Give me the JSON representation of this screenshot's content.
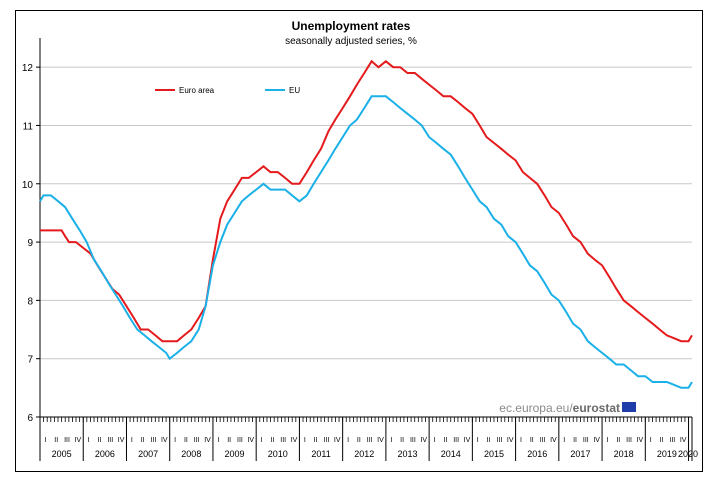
{
  "chart_data": {
    "type": "line",
    "title": "Unemployment rates",
    "subtitle": "seasonally adjusted series, %",
    "xlabel": "",
    "ylabel": "",
    "ylim": [
      6,
      12.5
    ],
    "yticks": [
      6,
      7,
      8,
      9,
      10,
      11,
      12
    ],
    "grid": true,
    "legend_position": "top-left",
    "years": [
      "2005",
      "2006",
      "2007",
      "2008",
      "2009",
      "2010",
      "2011",
      "2012",
      "2013",
      "2014",
      "2015",
      "2016",
      "2017",
      "2018",
      "2019",
      "2020"
    ],
    "quarter_labels": [
      "I",
      "II",
      "III",
      "IV"
    ],
    "x_start": 2005.0,
    "x_end": 2020.08,
    "series": [
      {
        "name": "Euro area",
        "color": "#e41a1c",
        "points": [
          [
            2005.0,
            9.2
          ],
          [
            2005.25,
            9.2
          ],
          [
            2005.5,
            9.2
          ],
          [
            2005.58,
            9.1
          ],
          [
            2005.67,
            9.0
          ],
          [
            2005.83,
            9.0
          ],
          [
            2006.0,
            8.9
          ],
          [
            2006.17,
            8.8
          ],
          [
            2006.33,
            8.6
          ],
          [
            2006.5,
            8.4
          ],
          [
            2006.67,
            8.2
          ],
          [
            2006.83,
            8.1
          ],
          [
            2007.0,
            7.9
          ],
          [
            2007.17,
            7.7
          ],
          [
            2007.33,
            7.5
          ],
          [
            2007.5,
            7.5
          ],
          [
            2007.67,
            7.4
          ],
          [
            2007.83,
            7.3
          ],
          [
            2008.0,
            7.3
          ],
          [
            2008.17,
            7.3
          ],
          [
            2008.33,
            7.4
          ],
          [
            2008.5,
            7.5
          ],
          [
            2008.67,
            7.7
          ],
          [
            2008.83,
            7.9
          ],
          [
            2009.0,
            8.7
          ],
          [
            2009.17,
            9.4
          ],
          [
            2009.33,
            9.7
          ],
          [
            2009.5,
            9.9
          ],
          [
            2009.67,
            10.1
          ],
          [
            2009.83,
            10.1
          ],
          [
            2010.0,
            10.2
          ],
          [
            2010.17,
            10.3
          ],
          [
            2010.33,
            10.2
          ],
          [
            2010.5,
            10.2
          ],
          [
            2010.67,
            10.1
          ],
          [
            2010.83,
            10.0
          ],
          [
            2011.0,
            10.0
          ],
          [
            2011.17,
            10.2
          ],
          [
            2011.33,
            10.4
          ],
          [
            2011.5,
            10.6
          ],
          [
            2011.67,
            10.9
          ],
          [
            2011.83,
            11.1
          ],
          [
            2012.0,
            11.3
          ],
          [
            2012.17,
            11.5
          ],
          [
            2012.33,
            11.7
          ],
          [
            2012.5,
            11.9
          ],
          [
            2012.67,
            12.1
          ],
          [
            2012.83,
            12.0
          ],
          [
            2013.0,
            12.1
          ],
          [
            2013.17,
            12.0
          ],
          [
            2013.33,
            12.0
          ],
          [
            2013.5,
            11.9
          ],
          [
            2013.67,
            11.9
          ],
          [
            2013.83,
            11.8
          ],
          [
            2014.0,
            11.7
          ],
          [
            2014.17,
            11.6
          ],
          [
            2014.33,
            11.5
          ],
          [
            2014.5,
            11.5
          ],
          [
            2014.67,
            11.4
          ],
          [
            2014.83,
            11.3
          ],
          [
            2015.0,
            11.2
          ],
          [
            2015.17,
            11.0
          ],
          [
            2015.33,
            10.8
          ],
          [
            2015.5,
            10.7
          ],
          [
            2015.67,
            10.6
          ],
          [
            2015.83,
            10.5
          ],
          [
            2016.0,
            10.4
          ],
          [
            2016.17,
            10.2
          ],
          [
            2016.33,
            10.1
          ],
          [
            2016.5,
            10.0
          ],
          [
            2016.67,
            9.8
          ],
          [
            2016.83,
            9.6
          ],
          [
            2017.0,
            9.5
          ],
          [
            2017.17,
            9.3
          ],
          [
            2017.33,
            9.1
          ],
          [
            2017.5,
            9.0
          ],
          [
            2017.67,
            8.8
          ],
          [
            2017.83,
            8.7
          ],
          [
            2018.0,
            8.6
          ],
          [
            2018.17,
            8.4
          ],
          [
            2018.33,
            8.2
          ],
          [
            2018.5,
            8.0
          ],
          [
            2018.67,
            7.9
          ],
          [
            2018.83,
            7.8
          ],
          [
            2019.0,
            7.7
          ],
          [
            2019.17,
            7.6
          ],
          [
            2019.33,
            7.5
          ],
          [
            2019.5,
            7.4
          ],
          [
            2019.67,
            7.35
          ],
          [
            2019.83,
            7.3
          ],
          [
            2020.0,
            7.3
          ],
          [
            2020.08,
            7.4
          ]
        ]
      },
      {
        "name": "EU",
        "color": "#1ab0e8",
        "points": [
          [
            2005.0,
            9.7
          ],
          [
            2005.08,
            9.8
          ],
          [
            2005.25,
            9.8
          ],
          [
            2005.42,
            9.7
          ],
          [
            2005.58,
            9.6
          ],
          [
            2005.75,
            9.4
          ],
          [
            2005.92,
            9.2
          ],
          [
            2006.08,
            9.0
          ],
          [
            2006.25,
            8.7
          ],
          [
            2006.42,
            8.5
          ],
          [
            2006.58,
            8.3
          ],
          [
            2006.75,
            8.1
          ],
          [
            2006.92,
            7.9
          ],
          [
            2007.08,
            7.7
          ],
          [
            2007.25,
            7.5
          ],
          [
            2007.42,
            7.4
          ],
          [
            2007.58,
            7.3
          ],
          [
            2007.75,
            7.2
          ],
          [
            2007.92,
            7.1
          ],
          [
            2008.0,
            7.0
          ],
          [
            2008.17,
            7.1
          ],
          [
            2008.33,
            7.2
          ],
          [
            2008.5,
            7.3
          ],
          [
            2008.67,
            7.5
          ],
          [
            2008.83,
            7.9
          ],
          [
            2009.0,
            8.6
          ],
          [
            2009.17,
            9.0
          ],
          [
            2009.33,
            9.3
          ],
          [
            2009.5,
            9.5
          ],
          [
            2009.67,
            9.7
          ],
          [
            2009.83,
            9.8
          ],
          [
            2010.0,
            9.9
          ],
          [
            2010.17,
            10.0
          ],
          [
            2010.33,
            9.9
          ],
          [
            2010.5,
            9.9
          ],
          [
            2010.67,
            9.9
          ],
          [
            2010.83,
            9.8
          ],
          [
            2011.0,
            9.7
          ],
          [
            2011.17,
            9.8
          ],
          [
            2011.33,
            10.0
          ],
          [
            2011.5,
            10.2
          ],
          [
            2011.67,
            10.4
          ],
          [
            2011.83,
            10.6
          ],
          [
            2012.0,
            10.8
          ],
          [
            2012.17,
            11.0
          ],
          [
            2012.33,
            11.1
          ],
          [
            2012.5,
            11.3
          ],
          [
            2012.67,
            11.5
          ],
          [
            2012.83,
            11.5
          ],
          [
            2013.0,
            11.5
          ],
          [
            2013.17,
            11.4
          ],
          [
            2013.33,
            11.3
          ],
          [
            2013.5,
            11.2
          ],
          [
            2013.67,
            11.1
          ],
          [
            2013.83,
            11.0
          ],
          [
            2014.0,
            10.8
          ],
          [
            2014.17,
            10.7
          ],
          [
            2014.33,
            10.6
          ],
          [
            2014.5,
            10.5
          ],
          [
            2014.67,
            10.3
          ],
          [
            2014.83,
            10.1
          ],
          [
            2015.0,
            9.9
          ],
          [
            2015.17,
            9.7
          ],
          [
            2015.33,
            9.6
          ],
          [
            2015.5,
            9.4
          ],
          [
            2015.67,
            9.3
          ],
          [
            2015.83,
            9.1
          ],
          [
            2016.0,
            9.0
          ],
          [
            2016.17,
            8.8
          ],
          [
            2016.33,
            8.6
          ],
          [
            2016.5,
            8.5
          ],
          [
            2016.67,
            8.3
          ],
          [
            2016.83,
            8.1
          ],
          [
            2017.0,
            8.0
          ],
          [
            2017.17,
            7.8
          ],
          [
            2017.33,
            7.6
          ],
          [
            2017.5,
            7.5
          ],
          [
            2017.67,
            7.3
          ],
          [
            2017.83,
            7.2
          ],
          [
            2018.0,
            7.1
          ],
          [
            2018.17,
            7.0
          ],
          [
            2018.33,
            6.9
          ],
          [
            2018.5,
            6.9
          ],
          [
            2018.67,
            6.8
          ],
          [
            2018.83,
            6.7
          ],
          [
            2019.0,
            6.7
          ],
          [
            2019.17,
            6.6
          ],
          [
            2019.33,
            6.6
          ],
          [
            2019.5,
            6.6
          ],
          [
            2019.67,
            6.55
          ],
          [
            2019.83,
            6.5
          ],
          [
            2020.0,
            6.5
          ],
          [
            2020.08,
            6.6
          ]
        ]
      }
    ]
  },
  "watermark": {
    "prefix": "ec.europa.eu/",
    "brand": "eurostat",
    "flag_color": "#1f3da8"
  }
}
